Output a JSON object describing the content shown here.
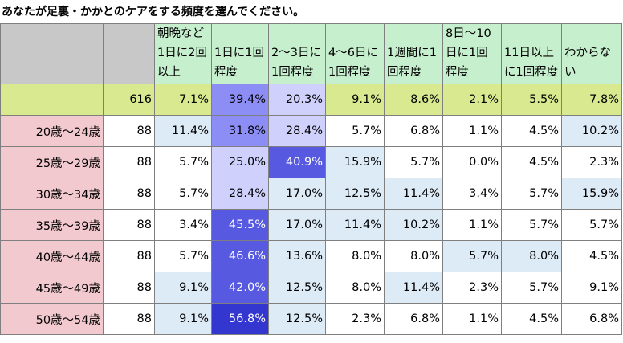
{
  "title": "あなたが足裏・かかとのケアをする頻度を選んでください。",
  "chart_data": {
    "type": "table",
    "columns": [
      "朝晩など1日に2回以上",
      "1日に1回程度",
      "2～3日に1回程度",
      "4～6日に1回程度",
      "1週間に1回程度",
      "8日～10日に1回程度",
      "11日以上に1回程度",
      "わからない"
    ],
    "total": {
      "n": "616",
      "values": [
        "7.1%",
        "39.4%",
        "20.3%",
        "9.1%",
        "8.6%",
        "2.1%",
        "5.5%",
        "7.8%"
      ]
    },
    "rows": [
      {
        "label": "20歳～24歳",
        "n": "88",
        "values": [
          "11.4%",
          "31.8%",
          "28.4%",
          "5.7%",
          "6.8%",
          "1.1%",
          "4.5%",
          "10.2%"
        ]
      },
      {
        "label": "25歳～29歳",
        "n": "88",
        "values": [
          "5.7%",
          "25.0%",
          "40.9%",
          "15.9%",
          "5.7%",
          "0.0%",
          "4.5%",
          "2.3%"
        ]
      },
      {
        "label": "30歳～34歳",
        "n": "88",
        "values": [
          "5.7%",
          "28.4%",
          "17.0%",
          "12.5%",
          "11.4%",
          "3.4%",
          "5.7%",
          "15.9%"
        ]
      },
      {
        "label": "35歳～39歳",
        "n": "88",
        "values": [
          "3.4%",
          "45.5%",
          "17.0%",
          "11.4%",
          "10.2%",
          "1.1%",
          "5.7%",
          "5.7%"
        ]
      },
      {
        "label": "40歳～44歳",
        "n": "88",
        "values": [
          "5.7%",
          "46.6%",
          "13.6%",
          "8.0%",
          "8.0%",
          "5.7%",
          "8.0%",
          "4.5%"
        ]
      },
      {
        "label": "45歳～49歳",
        "n": "88",
        "values": [
          "9.1%",
          "42.0%",
          "12.5%",
          "8.0%",
          "11.4%",
          "2.3%",
          "5.7%",
          "9.1%"
        ]
      },
      {
        "label": "50歳～54歳",
        "n": "88",
        "values": [
          "9.1%",
          "56.8%",
          "12.5%",
          "2.3%",
          "6.8%",
          "1.1%",
          "4.5%",
          "6.8%"
        ]
      }
    ]
  }
}
